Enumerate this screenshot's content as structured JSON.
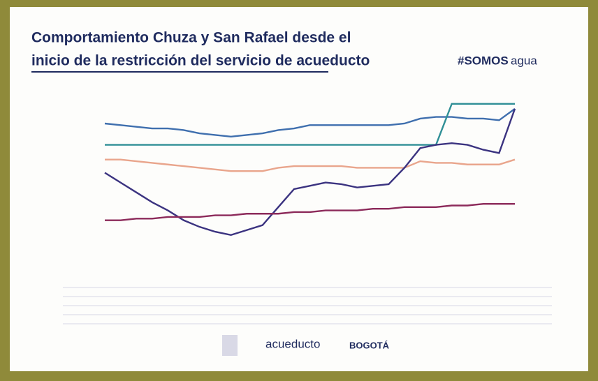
{
  "header": {
    "title_line1": "Comportamiento Chuza y San Rafael desde el",
    "title_line2": "inicio de la restricción del servicio de acueducto",
    "tag_bold": "#SOMOS",
    "tag_light": "agua"
  },
  "footer": {
    "brand": "acueducto",
    "city": "BOGOTÁ"
  },
  "chart_data": {
    "type": "line",
    "categories": [
      null,
      null,
      null,
      null,
      null,
      null,
      null,
      null,
      null,
      null,
      null,
      null,
      null,
      null,
      null,
      null,
      null,
      null,
      null,
      null,
      null,
      null,
      null,
      null,
      null,
      null,
      null
    ],
    "ylim": [
      0,
      100
    ],
    "series": [
      {
        "color": "#3f6fae",
        "values": [
          80,
          79,
          78,
          77,
          77,
          76,
          74,
          73,
          72,
          73,
          74,
          76,
          77,
          79,
          79,
          79,
          79,
          79,
          79,
          80,
          83,
          84,
          84,
          83,
          83,
          82,
          89
        ]
      },
      {
        "color": "#2f8f96",
        "values": [
          67,
          67,
          67,
          67,
          67,
          67,
          67,
          67,
          67,
          67,
          67,
          67,
          67,
          67,
          67,
          67,
          67,
          67,
          67,
          67,
          67,
          67,
          92,
          92,
          92,
          92,
          92
        ]
      },
      {
        "color": "#e9a58c",
        "values": [
          58,
          58,
          57,
          56,
          55,
          54,
          53,
          52,
          51,
          51,
          51,
          53,
          54,
          54,
          54,
          54,
          53,
          53,
          53,
          53,
          57,
          56,
          56,
          55,
          55,
          55,
          58
        ]
      },
      {
        "color": "#3b3380",
        "values": [
          50,
          44,
          38,
          32,
          27,
          21,
          17,
          14,
          12,
          15,
          18,
          29,
          40,
          42,
          44,
          43,
          41,
          42,
          43,
          53,
          65,
          67,
          68,
          67,
          64,
          62,
          89
        ]
      },
      {
        "color": "#8c2a5a",
        "values": [
          21,
          21,
          22,
          22,
          23,
          23,
          23,
          24,
          24,
          25,
          25,
          25,
          26,
          26,
          27,
          27,
          27,
          28,
          28,
          29,
          29,
          29,
          30,
          30,
          31,
          31,
          31
        ]
      }
    ]
  }
}
